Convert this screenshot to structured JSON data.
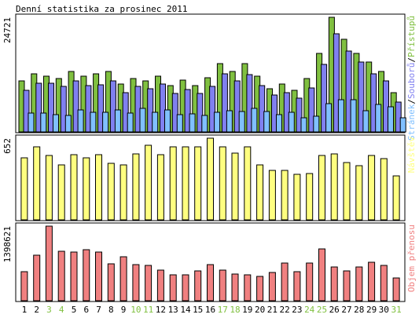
{
  "title": "Denní statistika za prosinec 2011",
  "colors": {
    "background": "#ffffff",
    "plot_background": "#ffffff",
    "border": "#000000",
    "hits": "#80c040",
    "files": "#8080f0",
    "pages": "#80c0ff",
    "visits": "#ffff80",
    "volume": "#f08080",
    "weekend_label": "#80c040",
    "weekday_label": "#000000"
  },
  "chart_data": [
    {
      "type": "bar",
      "name": "hits-files-pages",
      "title": "Denní statistika za prosinec 2011",
      "ymax_label": "24721",
      "ylim": [
        0,
        24721
      ],
      "legend": {
        "placement": "right-vertical",
        "parts": [
          "Stránek",
          "/",
          "Souborů",
          "/",
          "Přístupů"
        ],
        "part_colors": [
          "pages",
          "border",
          "files",
          "border",
          "hits"
        ]
      },
      "categories": [
        "1",
        "2",
        "3",
        "4",
        "5",
        "6",
        "7",
        "8",
        "9",
        "10",
        "11",
        "12",
        "13",
        "14",
        "15",
        "16",
        "17",
        "18",
        "19",
        "20",
        "21",
        "22",
        "23",
        "24",
        "25",
        "26",
        "27",
        "28",
        "29",
        "30",
        "31"
      ],
      "series": [
        {
          "name": "Přístupů",
          "color_key": "hits",
          "values": [
            11000,
            12500,
            12000,
            11500,
            13000,
            12000,
            12500,
            13000,
            10300,
            11500,
            11000,
            12000,
            10000,
            11200,
            10000,
            11700,
            14700,
            13000,
            14700,
            12000,
            9300,
            10300,
            9000,
            11500,
            17000,
            24721,
            20000,
            17000,
            15000,
            13000,
            8500
          ]
        },
        {
          "name": "Souborů",
          "color_key": "files",
          "values": [
            9000,
            10500,
            10500,
            9800,
            11000,
            10000,
            10200,
            11000,
            8500,
            9900,
            9300,
            10300,
            8300,
            9200,
            8300,
            9800,
            12500,
            11000,
            12300,
            10000,
            8000,
            8500,
            7300,
            9500,
            14500,
            21200,
            17500,
            15000,
            12500,
            11000,
            6500
          ]
        },
        {
          "name": "Stránek",
          "color_key": "pages",
          "values": [
            4000,
            4000,
            3700,
            3600,
            4800,
            4300,
            4300,
            4700,
            4000,
            5000,
            4300,
            4700,
            3700,
            3900,
            3500,
            4300,
            4600,
            4400,
            5000,
            4400,
            3700,
            4300,
            3100,
            3400,
            6100,
            6900,
            6900,
            4600,
            5900,
            5400,
            3000
          ]
        }
      ]
    },
    {
      "type": "bar",
      "name": "visits",
      "ymax_label": "652",
      "ylim": [
        0,
        652
      ],
      "legend": {
        "placement": "right-vertical",
        "parts": [
          "Návštěv"
        ],
        "part_colors": [
          "visits"
        ]
      },
      "categories": [
        "1",
        "2",
        "3",
        "4",
        "5",
        "6",
        "7",
        "8",
        "9",
        "10",
        "11",
        "12",
        "13",
        "14",
        "15",
        "16",
        "17",
        "18",
        "19",
        "20",
        "21",
        "22",
        "23",
        "24",
        "25",
        "26",
        "27",
        "28",
        "29",
        "30",
        "31"
      ],
      "series": [
        {
          "name": "Návštěv",
          "color_key": "visits",
          "values": [
            495,
            580,
            511,
            436,
            518,
            496,
            518,
            453,
            436,
            528,
            595,
            518,
            580,
            584,
            584,
            652,
            584,
            532,
            580,
            439,
            398,
            398,
            365,
            373,
            511,
            528,
            459,
            434,
            511,
            492,
            352
          ]
        }
      ]
    },
    {
      "type": "bar",
      "name": "volume",
      "ymax_label": "1398621",
      "ylim": [
        0,
        1398621
      ],
      "legend": {
        "placement": "right-vertical",
        "parts": [
          "Objem přenosu"
        ],
        "part_colors": [
          "volume"
        ]
      },
      "categories": [
        "1",
        "2",
        "3",
        "4",
        "5",
        "6",
        "7",
        "8",
        "9",
        "10",
        "11",
        "12",
        "13",
        "14",
        "15",
        "16",
        "17",
        "18",
        "19",
        "20",
        "21",
        "22",
        "23",
        "24",
        "25",
        "26",
        "27",
        "28",
        "29",
        "30",
        "31"
      ],
      "series": [
        {
          "name": "Objem přenosu",
          "color_key": "volume",
          "values": [
            540000,
            860000,
            1398621,
            930000,
            920000,
            960000,
            910000,
            690000,
            830000,
            680000,
            660000,
            580000,
            490000,
            480000,
            560000,
            680000,
            570000,
            500000,
            490000,
            460000,
            530000,
            710000,
            550000,
            710000,
            970000,
            630000,
            560000,
            640000,
            720000,
            660000,
            420000
          ]
        }
      ]
    }
  ],
  "x_axis": {
    "labels": [
      "1",
      "2",
      "3",
      "4",
      "5",
      "6",
      "7",
      "8",
      "9",
      "10",
      "11",
      "12",
      "13",
      "14",
      "15",
      "16",
      "17",
      "18",
      "19",
      "20",
      "21",
      "22",
      "23",
      "24",
      "25",
      "26",
      "27",
      "28",
      "29",
      "30",
      "31"
    ],
    "weekend": [
      false,
      false,
      true,
      true,
      false,
      false,
      false,
      false,
      false,
      true,
      true,
      false,
      false,
      false,
      false,
      false,
      true,
      true,
      false,
      false,
      false,
      false,
      false,
      true,
      true,
      false,
      false,
      false,
      false,
      false,
      true
    ]
  }
}
